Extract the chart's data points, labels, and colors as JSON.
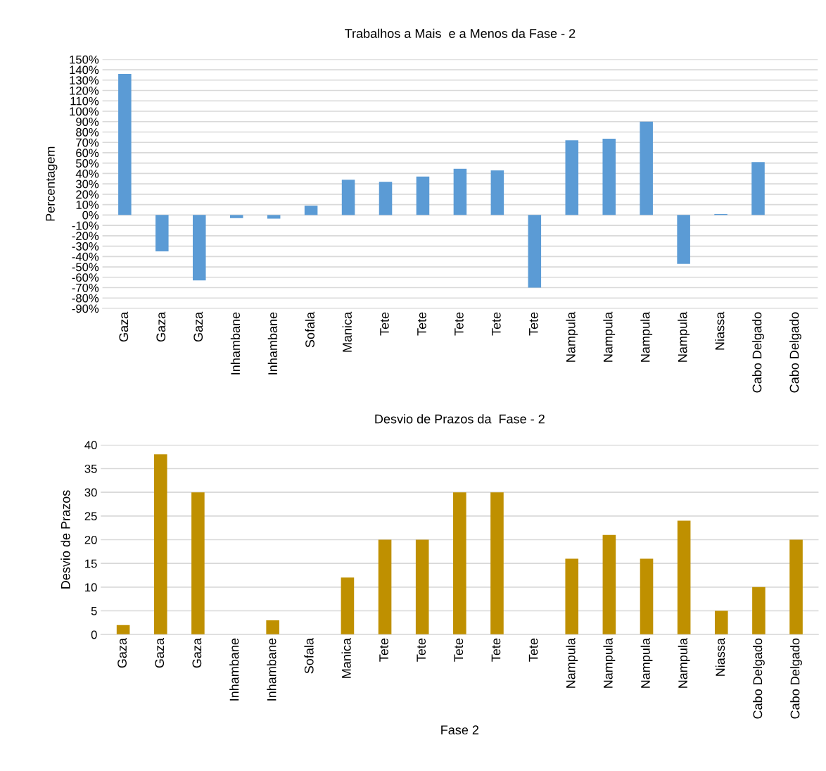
{
  "chart_data": [
    {
      "type": "bar",
      "title": "Trabalhos a Mais  e a Menos da Fase - 2",
      "ylabel": "Percentagem",
      "categories": [
        "Gaza",
        "Gaza",
        "Gaza",
        "Inhambane",
        "Inhambane",
        "Sofala",
        "Manica",
        "Tete",
        "Tete",
        "Tete",
        "Tete",
        "Tete",
        "Nampula",
        "Nampula",
        "Nampula",
        "Nampula",
        "Niassa",
        "Cabo Delgado",
        "Cabo Delgado"
      ],
      "values": [
        136,
        -35,
        -63,
        -3,
        -3.5,
        9,
        34,
        32,
        37,
        44.5,
        43,
        -70,
        72,
        73.5,
        90,
        -47,
        1,
        51,
        0
      ],
      "color": "#5b9bd5",
      "ylim": [
        -90,
        150
      ],
      "yticks": [
        {
          "value": -90,
          "label": "-90%"
        },
        {
          "value": -80,
          "label": "-80%"
        },
        {
          "value": -70,
          "label": "-70%"
        },
        {
          "value": -60,
          "label": "-60%"
        },
        {
          "value": -50,
          "label": "-50%"
        },
        {
          "value": -40,
          "label": "-40%"
        },
        {
          "value": -30,
          "label": "-30%"
        },
        {
          "value": -20,
          "label": "-20%"
        },
        {
          "value": -10,
          "label": "-10%"
        },
        {
          "value": 0,
          "label": "0%"
        },
        {
          "value": 10,
          "label": "10%"
        },
        {
          "value": 20,
          "label": "20%"
        },
        {
          "value": 30,
          "label": "30%"
        },
        {
          "value": 40,
          "label": "40%"
        },
        {
          "value": 50,
          "label": "50%"
        },
        {
          "value": 60,
          "label": "60%"
        },
        {
          "value": 70,
          "label": "70%"
        },
        {
          "value": 80,
          "label": "80%"
        },
        {
          "value": 90,
          "label": "90%"
        },
        {
          "value": 100,
          "label": "100%"
        },
        {
          "value": 110,
          "label": "110%"
        },
        {
          "value": 120,
          "label": "120%"
        },
        {
          "value": 130,
          "label": "130%"
        },
        {
          "value": 140,
          "label": "140%"
        },
        {
          "value": 150,
          "label": "150%"
        }
      ],
      "grid": "y"
    },
    {
      "type": "bar",
      "title": "Desvio de Prazos da  Fase - 2",
      "ylabel": "Desvio de Prazos",
      "xlabel": "Fase 2",
      "categories": [
        "Gaza",
        "Gaza",
        "Gaza",
        "Inhambane",
        "Inhambane",
        "Sofala",
        "Manica",
        "Tete",
        "Tete",
        "Tete",
        "Tete",
        "Tete",
        "Nampula",
        "Nampula",
        "Nampula",
        "Nampula",
        "Niassa",
        "Cabo Delgado",
        "Cabo Delgado"
      ],
      "values": [
        2,
        38,
        30,
        0,
        3,
        0,
        12,
        20,
        20,
        30,
        30,
        0,
        16,
        21,
        16,
        24,
        5,
        10,
        20
      ],
      "color": "#bf9000",
      "ylim": [
        0,
        40
      ],
      "yticks": [
        0,
        5,
        10,
        15,
        20,
        25,
        30,
        35,
        40
      ],
      "grid": "y"
    }
  ]
}
